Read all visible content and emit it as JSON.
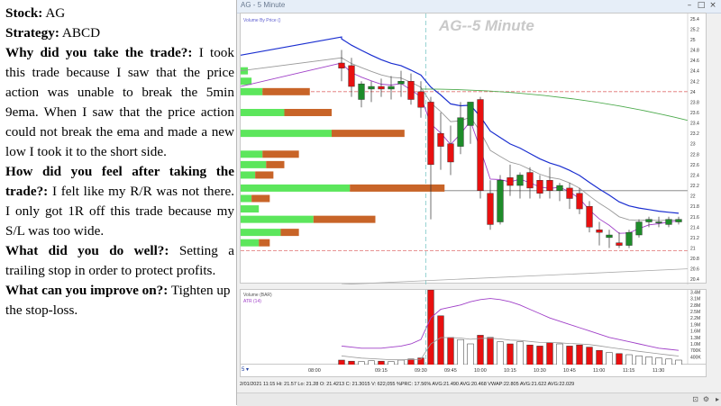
{
  "journal": {
    "stock_label": "Stock:",
    "stock_value": "AG",
    "strategy_label": "Strategy:",
    "strategy_value": "ABCD",
    "why_label": "Why did you take the trade?:",
    "why_text": "I took this trade because I saw that the price action was unable to break the 5min 9ema. When I saw that the price action could not break the ema and made a new low I took it to the short side.",
    "feel_label": "How did you feel after taking the trade?:",
    "feel_text": "I felt like my R/R was not there. I only got 1R off this trade because my S/L was too wide.",
    "well_label": "What did you do well?:",
    "well_text": "Setting a trailing  stop in order to protect profits.",
    "improve_label": "What can you improve on?:",
    "improve_text": "Tighten up the stop-loss."
  },
  "window": {
    "title": "AG - 5 Minute",
    "chart_title": "AG--5 Minute",
    "price_legend": "Volume By Price ()",
    "volume_legend": "Volume (BAR)",
    "atr_legend": "ATR (14)",
    "status_text": "2/01/2021 11:15  Hi: 21.57  Lo: 21.28  O: 21.4213  C: 21.3015  V: 622,055  %PRC: 17.56%  AVG:21.490  AVG:20.468  VWAP:22.805  AVG:21.622  AVG:22.029",
    "corner_label": "5 ▾"
  },
  "colors": {
    "bull": "#1e8c2a",
    "bear": "#e81010",
    "ema9": "#a040c8",
    "ma20": "#9a9a9a",
    "ma50": "#1a2ed0",
    "ma200": "#4caa4c",
    "vbp_green": "#5ce65c",
    "vbp_brown": "#c86428",
    "level_line": "#e07070"
  },
  "chart_data": {
    "type": "candlestick",
    "title": "AG--5 Minute",
    "price_axis_ticks": [
      "25.4",
      "25.2",
      "25",
      "24.8",
      "24.6",
      "24.4",
      "24.2",
      "24",
      "23.8",
      "23.6",
      "23.4",
      "23.2",
      "23",
      "22.8",
      "22.6",
      "22.4",
      "22.2",
      "22",
      "21.8",
      "21.6",
      "21.4",
      "21.2",
      "21",
      "20.8",
      "20.6",
      "20.4"
    ],
    "time_labels": [
      "08:00",
      "09:15",
      "09:30",
      "09:45",
      "10:00",
      "10:15",
      "10:30",
      "10:45",
      "11:00",
      "11:15",
      "11:30"
    ],
    "ylim": [
      20.3,
      25.5
    ],
    "candles": [
      {
        "o": 24.55,
        "h": 24.8,
        "l": 24.2,
        "c": 24.45
      },
      {
        "o": 24.5,
        "h": 24.65,
        "l": 23.9,
        "c": 24.1
      },
      {
        "o": 23.85,
        "h": 24.2,
        "l": 23.7,
        "c": 24.15
      },
      {
        "o": 24.05,
        "h": 24.2,
        "l": 23.8,
        "c": 24.1
      },
      {
        "o": 24.1,
        "h": 24.25,
        "l": 23.9,
        "c": 24.05
      },
      {
        "o": 24.05,
        "h": 24.3,
        "l": 23.85,
        "c": 24.1
      },
      {
        "o": 24.15,
        "h": 24.4,
        "l": 23.9,
        "c": 24.2
      },
      {
        "o": 24.2,
        "h": 24.35,
        "l": 23.75,
        "c": 23.85
      },
      {
        "o": 24.0,
        "h": 24.2,
        "l": 23.5,
        "c": 23.7
      },
      {
        "o": 23.8,
        "h": 23.9,
        "l": 21.55,
        "c": 22.6
      },
      {
        "o": 23.2,
        "h": 23.6,
        "l": 22.5,
        "c": 22.95
      },
      {
        "o": 23.0,
        "h": 23.35,
        "l": 22.4,
        "c": 22.65
      },
      {
        "o": 22.95,
        "h": 23.8,
        "l": 22.8,
        "c": 23.5
      },
      {
        "o": 23.35,
        "h": 23.75,
        "l": 23.0,
        "c": 23.8
      },
      {
        "o": 23.85,
        "h": 23.9,
        "l": 21.95,
        "c": 22.1
      },
      {
        "o": 22.05,
        "h": 22.3,
        "l": 21.35,
        "c": 21.45
      },
      {
        "o": 21.5,
        "h": 22.4,
        "l": 21.45,
        "c": 22.3
      },
      {
        "o": 22.35,
        "h": 22.6,
        "l": 22.0,
        "c": 22.2
      },
      {
        "o": 22.2,
        "h": 22.45,
        "l": 21.95,
        "c": 22.4
      },
      {
        "o": 22.45,
        "h": 22.55,
        "l": 21.95,
        "c": 22.15
      },
      {
        "o": 22.3,
        "h": 22.4,
        "l": 21.95,
        "c": 22.05
      },
      {
        "o": 22.3,
        "h": 22.55,
        "l": 21.95,
        "c": 22.1
      },
      {
        "o": 22.1,
        "h": 22.25,
        "l": 21.9,
        "c": 22.2
      },
      {
        "o": 22.15,
        "h": 22.25,
        "l": 21.75,
        "c": 21.95
      },
      {
        "o": 22.05,
        "h": 22.15,
        "l": 21.65,
        "c": 21.75
      },
      {
        "o": 21.8,
        "h": 21.9,
        "l": 21.3,
        "c": 21.4
      },
      {
        "o": 21.35,
        "h": 21.5,
        "l": 21.05,
        "c": 21.3
      },
      {
        "o": 21.2,
        "h": 21.35,
        "l": 21.0,
        "c": 21.25
      },
      {
        "o": 21.1,
        "h": 21.3,
        "l": 21.0,
        "c": 21.05
      },
      {
        "o": 21.05,
        "h": 21.35,
        "l": 21.0,
        "c": 21.3
      },
      {
        "o": 21.25,
        "h": 21.55,
        "l": 21.2,
        "c": 21.5
      },
      {
        "o": 21.5,
        "h": 21.6,
        "l": 21.4,
        "c": 21.55
      },
      {
        "o": 21.5,
        "h": 21.6,
        "l": 21.4,
        "c": 21.5
      },
      {
        "o": 21.45,
        "h": 21.6,
        "l": 21.4,
        "c": 21.55
      },
      {
        "o": 21.5,
        "h": 21.6,
        "l": 21.45,
        "c": 21.55
      }
    ],
    "volume_axis_ticks": [
      "3.4M",
      "3.1M",
      "2.8M",
      "2.5M",
      "2.2M",
      "1.9M",
      "1.6M",
      "1.3M",
      "1.0M",
      "700K",
      "400K"
    ],
    "volume_ylim": [
      0,
      3.5
    ],
    "volume_M": [
      0.25,
      0.2,
      0.18,
      0.22,
      0.2,
      0.18,
      0.25,
      0.3,
      0.35,
      3.5,
      2.3,
      1.3,
      1.2,
      1.0,
      1.4,
      1.3,
      1.1,
      1.0,
      1.1,
      0.95,
      0.9,
      1.05,
      1.0,
      0.9,
      0.95,
      0.85,
      0.7,
      0.6,
      0.55,
      0.5,
      0.45,
      0.4,
      0.35,
      0.3,
      0.25
    ],
    "horizontal_levels": [
      24.0,
      22.1,
      20.95
    ],
    "vbp": [
      {
        "price": 24.4,
        "green": 0.02,
        "brown": 0.0
      },
      {
        "price": 24.2,
        "green": 0.03,
        "brown": 0.0
      },
      {
        "price": 24.0,
        "green": 0.06,
        "brown": 0.13
      },
      {
        "price": 23.6,
        "green": 0.12,
        "brown": 0.13
      },
      {
        "price": 23.2,
        "green": 0.25,
        "brown": 0.2
      },
      {
        "price": 22.8,
        "green": 0.06,
        "brown": 0.1
      },
      {
        "price": 22.6,
        "green": 0.07,
        "brown": 0.05
      },
      {
        "price": 22.4,
        "green": 0.04,
        "brown": 0.05
      },
      {
        "price": 22.15,
        "green": 0.3,
        "brown": 0.26
      },
      {
        "price": 21.95,
        "green": 0.03,
        "brown": 0.05
      },
      {
        "price": 21.75,
        "green": 0.05,
        "brown": 0.0
      },
      {
        "price": 21.55,
        "green": 0.2,
        "brown": 0.17
      },
      {
        "price": 21.3,
        "green": 0.11,
        "brown": 0.05
      },
      {
        "price": 21.1,
        "green": 0.05,
        "brown": 0.03
      }
    ]
  }
}
